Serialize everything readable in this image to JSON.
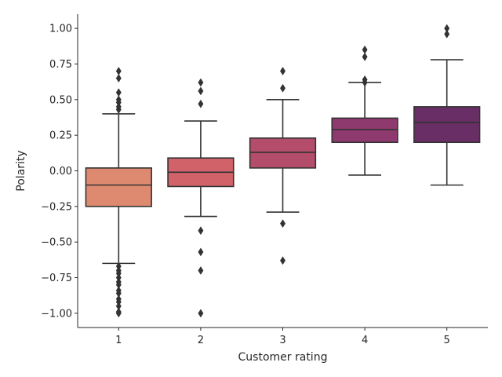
{
  "chart_data": {
    "type": "box",
    "title": "",
    "xlabel": "Customer rating",
    "ylabel": "Polarity",
    "categories": [
      "1",
      "2",
      "3",
      "4",
      "5"
    ],
    "ylim": [
      -1.1,
      1.1
    ],
    "yticks": [
      -1.0,
      -0.75,
      -0.5,
      -0.25,
      0.0,
      0.25,
      0.5,
      0.75,
      1.0
    ],
    "ytick_labels": [
      "−1.00",
      "−0.75",
      "−0.50",
      "−0.25",
      "0.00",
      "0.25",
      "0.50",
      "0.75",
      "1.00"
    ],
    "grid": false,
    "legend": "none",
    "boxes": [
      {
        "category": "1",
        "color": "#DE8A70",
        "whisker_low": -0.65,
        "q1": -0.25,
        "median": -0.1,
        "q3": 0.02,
        "whisker_high": 0.4,
        "outliers": [
          0.7,
          0.65,
          0.55,
          0.5,
          0.48,
          0.45,
          0.43,
          -0.67,
          -0.7,
          -0.72,
          -0.75,
          -0.78,
          -0.8,
          -0.84,
          -0.86,
          -0.9,
          -0.92,
          -0.95,
          -0.99,
          -1.0
        ]
      },
      {
        "category": "2",
        "color": "#D2626A",
        "whisker_low": -0.32,
        "q1": -0.11,
        "median": -0.01,
        "q3": 0.09,
        "whisker_high": 0.35,
        "outliers": [
          0.62,
          0.56,
          0.47,
          -0.42,
          -0.57,
          -0.7,
          -1.0
        ]
      },
      {
        "category": "3",
        "color": "#B44C6B",
        "whisker_low": -0.29,
        "q1": 0.02,
        "median": 0.13,
        "q3": 0.23,
        "whisker_high": 0.5,
        "outliers": [
          0.7,
          0.58,
          -0.37,
          -0.63
        ]
      },
      {
        "category": "4",
        "color": "#8E3A6E",
        "whisker_low": -0.03,
        "q1": 0.2,
        "median": 0.29,
        "q3": 0.37,
        "whisker_high": 0.62,
        "outliers": [
          0.85,
          0.8,
          0.64,
          0.62
        ]
      },
      {
        "category": "5",
        "color": "#6A2E66",
        "whisker_low": -0.1,
        "q1": 0.2,
        "median": 0.34,
        "q3": 0.45,
        "whisker_high": 0.78,
        "outliers": [
          1.0,
          0.96
        ]
      }
    ]
  }
}
